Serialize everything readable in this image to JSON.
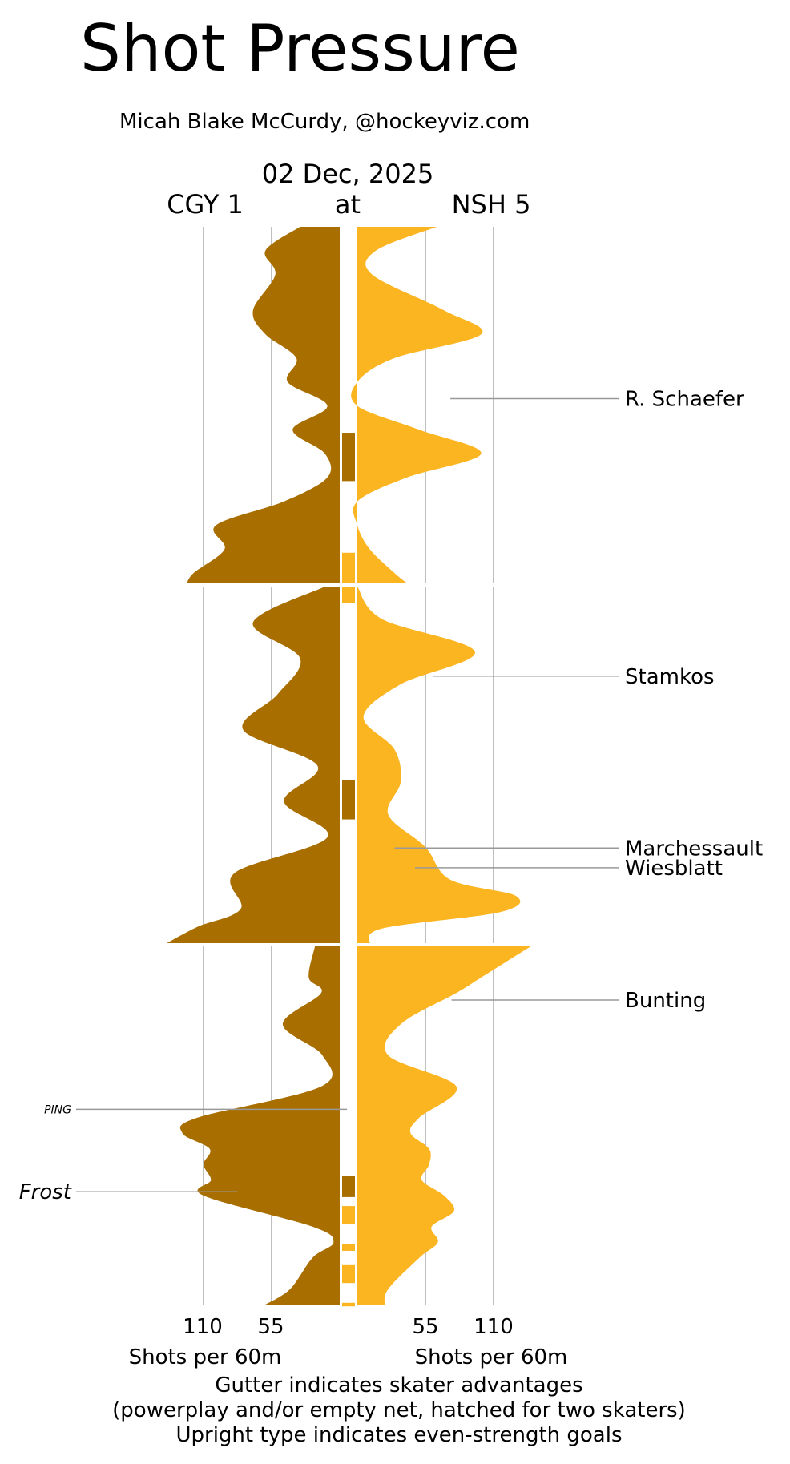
{
  "chart_data": {
    "type": "area",
    "title": "Shot Pressure",
    "subtitle": "Micah Blake McCurdy, @hockeyviz.com",
    "date": "02 Dec, 2025",
    "away_team": "CGY 1",
    "connector": "at",
    "home_team": "NSH 5",
    "x_ticks_away": [
      "110",
      "55"
    ],
    "x_ticks_home": [
      "55",
      "110"
    ],
    "xlabel_away": "Shots per 60m",
    "xlabel_home": "Shots per 60m",
    "xlim": [
      0,
      140
    ],
    "periods": 3,
    "footnotes": [
      "Gutter indicates skater advantages",
      "(powerplay and/or empty net, hatched for two skaters)",
      "Upright type indicates even-strength goals"
    ],
    "colors": {
      "away": "#a96e00",
      "home": "#fbb521",
      "grid": "#aaaaaa"
    },
    "series": [
      {
        "name": "CGY 1",
        "side": "away",
        "periods": [
          [
            [
              0,
              32
            ],
            [
              2,
              60
            ],
            [
              4,
              52
            ],
            [
              7,
              70
            ],
            [
              9,
              60
            ],
            [
              11,
              35
            ],
            [
              13,
              42
            ],
            [
              15,
              10
            ],
            [
              17,
              38
            ],
            [
              19,
              12
            ],
            [
              21,
              10
            ],
            [
              23,
              45
            ],
            [
              25,
              100
            ],
            [
              27,
              93
            ],
            [
              29,
              118
            ],
            [
              30,
              124
            ]
          ],
          [
            [
              0,
              12
            ],
            [
              2,
              70
            ],
            [
              4,
              32
            ],
            [
              6,
              50
            ],
            [
              8,
              78
            ],
            [
              10,
              18
            ],
            [
              12,
              45
            ],
            [
              14,
              10
            ],
            [
              16,
              85
            ],
            [
              18,
              80
            ],
            [
              19,
              115
            ],
            [
              20,
              142
            ]
          ],
          [
            [
              0,
              20
            ],
            [
              2,
              25
            ],
            [
              3,
              15
            ],
            [
              5,
              46
            ],
            [
              7,
              14
            ],
            [
              9,
              15
            ],
            [
              11,
              115
            ],
            [
              12,
              127
            ],
            [
              13,
              105
            ],
            [
              14,
              110
            ],
            [
              15,
              104
            ],
            [
              16,
              110
            ],
            [
              18,
              22
            ],
            [
              19,
              5
            ],
            [
              20,
              22
            ],
            [
              22,
              40
            ],
            [
              23,
              60
            ]
          ]
        ]
      },
      {
        "name": "NSH 5",
        "side": "home",
        "periods": [
          [
            [
              0,
              64
            ],
            [
              2,
              15
            ],
            [
              4,
              12
            ],
            [
              7,
              70
            ],
            [
              9,
              100
            ],
            [
              11,
              30
            ],
            [
              13,
              0
            ],
            [
              15,
              0
            ],
            [
              17,
              50
            ],
            [
              19,
              100
            ],
            [
              21,
              40
            ],
            [
              23,
              0
            ],
            [
              25,
              0
            ],
            [
              27,
              10
            ],
            [
              29,
              30
            ],
            [
              30,
              42
            ]
          ],
          [
            [
              0,
              0
            ],
            [
              2,
              20
            ],
            [
              4,
              95
            ],
            [
              6,
              35
            ],
            [
              8,
              5
            ],
            [
              10,
              30
            ],
            [
              12,
              35
            ],
            [
              14,
              25
            ],
            [
              16,
              55
            ],
            [
              18,
              75
            ],
            [
              19,
              128
            ],
            [
              20,
              115
            ],
            [
              21,
              20
            ],
            [
              22,
              10
            ]
          ],
          [
            [
              0,
              140
            ],
            [
              2,
              100
            ],
            [
              3,
              80
            ],
            [
              5,
              35
            ],
            [
              7,
              25
            ],
            [
              9,
              80
            ],
            [
              11,
              50
            ],
            [
              12,
              43
            ],
            [
              13,
              58
            ],
            [
              14,
              58
            ],
            [
              15,
              52
            ],
            [
              16,
              70
            ],
            [
              17,
              78
            ],
            [
              18,
              60
            ],
            [
              19,
              65
            ],
            [
              20,
              50
            ],
            [
              22,
              25
            ],
            [
              23,
              22
            ]
          ]
        ]
      }
    ],
    "gutter_boxes": [
      {
        "period": 1,
        "start": 11.5,
        "end": 14.2,
        "team": "away"
      },
      {
        "period": 1,
        "start": 18.2,
        "end": 21.0,
        "team": "home"
      },
      {
        "period": 2,
        "start": 10.8,
        "end": 13.0,
        "team": "away"
      },
      {
        "period": 3,
        "start": 12.8,
        "end": 14.0,
        "team": "away"
      },
      {
        "period": 3,
        "start": 14.5,
        "end": 15.5,
        "team": "home"
      },
      {
        "period": 3,
        "start": 16.6,
        "end": 17.0,
        "team": "home"
      },
      {
        "period": 3,
        "start": 17.8,
        "end": 18.8,
        "team": "home"
      },
      {
        "period": 3,
        "start": 19.9,
        "end": 20.1,
        "team": "home"
      }
    ],
    "goals": [
      {
        "player": "R. Schaefer",
        "team": "home",
        "period": 1,
        "time": 9.6,
        "even_strength": true
      },
      {
        "player": "Stamkos",
        "team": "home",
        "period": 2,
        "time": 5.0,
        "even_strength": true
      },
      {
        "player": "Marchessault",
        "team": "home",
        "period": 2,
        "time": 14.6,
        "even_strength": true
      },
      {
        "player": "Wiesblatt",
        "team": "home",
        "period": 2,
        "time": 15.7,
        "even_strength": true
      },
      {
        "player": "Bunting",
        "team": "home",
        "period": 3,
        "time": 3.0,
        "even_strength": true
      },
      {
        "player": "PING",
        "team": "away",
        "period": 3,
        "time": 9.1,
        "even_strength": false,
        "small": true
      },
      {
        "player": "Frost",
        "team": "away",
        "period": 3,
        "time": 13.7,
        "even_strength": false
      }
    ]
  }
}
